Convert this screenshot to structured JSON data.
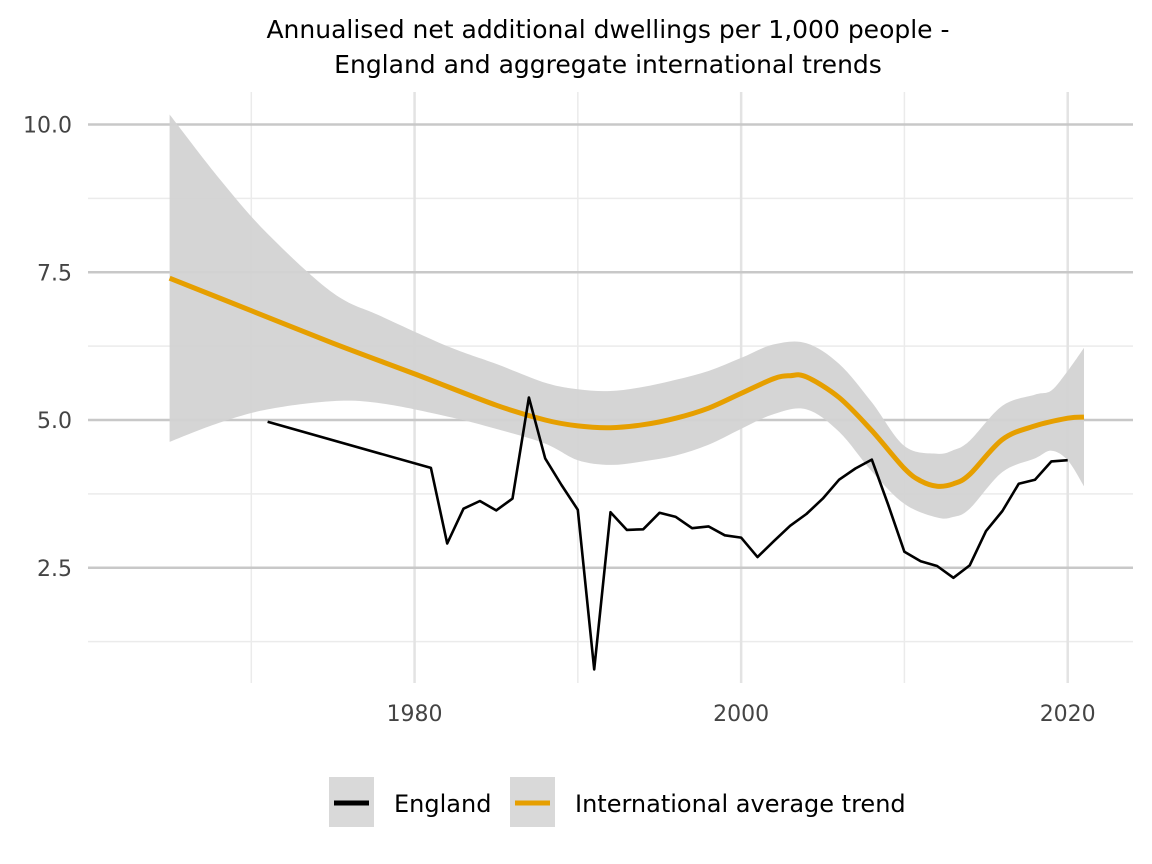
{
  "chart_data": {
    "type": "line",
    "title_lines": [
      "Annualised net additional dwellings per 1,000 people -",
      "England and aggregate international trends"
    ],
    "xlabel": "",
    "ylabel": "",
    "xlim": [
      1960,
      2024
    ],
    "ylim": [
      0.55,
      10.55
    ],
    "x_ticks": [
      1980,
      2000,
      2020
    ],
    "x_tick_labels": [
      "1980",
      "2000",
      "2020"
    ],
    "x_minor_ticks": [
      1970,
      1990,
      2010
    ],
    "y_ticks": [
      2.5,
      5.0,
      7.5,
      10.0
    ],
    "y_tick_labels": [
      "2.5",
      "5.0",
      "7.5",
      "10.0"
    ],
    "y_minor_ticks": [
      1.25,
      3.75,
      6.25,
      8.75
    ],
    "grid": true,
    "legend_position": "bottom",
    "colors": {
      "england": "#000000",
      "trend": "#E69F00",
      "band": "#d3d3d3",
      "grid_major": "#c8c8c8",
      "grid_minor": "#ebebeb",
      "legend_bg": "#d9d9d9"
    },
    "series": [
      {
        "name": "England",
        "x": [
          1971,
          1981,
          1982,
          1983,
          1984,
          1985,
          1986,
          1987,
          1988,
          1989,
          1990,
          1991,
          1992,
          1993,
          1994,
          1995,
          1996,
          1997,
          1998,
          1999,
          2000,
          2001,
          2002,
          2003,
          2004,
          2005,
          2006,
          2007,
          2008,
          2009,
          2010,
          2011,
          2012,
          2013,
          2014,
          2015,
          2016,
          2017,
          2018,
          2019,
          2020
        ],
        "values": [
          4.97,
          4.19,
          2.91,
          3.5,
          3.63,
          3.47,
          3.67,
          5.38,
          4.35,
          3.9,
          3.48,
          0.78,
          3.44,
          3.14,
          3.15,
          3.43,
          3.36,
          3.17,
          3.2,
          3.05,
          3.01,
          2.68,
          2.95,
          3.21,
          3.41,
          3.67,
          3.99,
          4.18,
          4.33,
          3.57,
          2.77,
          2.61,
          2.53,
          2.33,
          2.54,
          3.12,
          3.46,
          3.92,
          3.99,
          4.3,
          4.32
        ]
      },
      {
        "name": "International average trend",
        "x": [
          1965,
          1970,
          1975,
          1980,
          1985,
          1988,
          1990,
          1992,
          1994,
          1996,
          1998,
          2000,
          2002,
          2003,
          2004,
          2006,
          2008,
          2010,
          2011,
          2012,
          2013,
          2014,
          2016,
          2018,
          2020,
          2021
        ],
        "values": [
          7.4,
          6.85,
          6.3,
          5.78,
          5.25,
          5.0,
          4.9,
          4.87,
          4.92,
          5.03,
          5.2,
          5.45,
          5.7,
          5.75,
          5.73,
          5.38,
          4.82,
          4.18,
          3.97,
          3.88,
          3.92,
          4.08,
          4.67,
          4.9,
          5.03,
          5.05
        ]
      }
    ],
    "confidence_band": {
      "x": [
        1965,
        1968,
        1971,
        1975,
        1978,
        1982,
        1985,
        1988,
        1990,
        1992,
        1994,
        1996,
        1998,
        2000,
        2002,
        2004,
        2006,
        2008,
        2010,
        2012,
        2013,
        2014,
        2016,
        2018,
        2019,
        2020,
        2021
      ],
      "upper": [
        10.17,
        9.1,
        8.15,
        7.15,
        6.75,
        6.25,
        5.95,
        5.63,
        5.52,
        5.49,
        5.56,
        5.68,
        5.83,
        6.05,
        6.28,
        6.3,
        5.95,
        5.3,
        4.56,
        4.43,
        4.49,
        4.65,
        5.24,
        5.43,
        5.5,
        5.83,
        6.22
      ],
      "lower": [
        4.63,
        4.95,
        5.18,
        5.32,
        5.28,
        5.06,
        4.85,
        4.6,
        4.32,
        4.24,
        4.3,
        4.4,
        4.58,
        4.85,
        5.1,
        5.18,
        4.8,
        4.13,
        3.58,
        3.35,
        3.36,
        3.5,
        4.12,
        4.35,
        4.48,
        4.32,
        3.88
      ]
    },
    "legend": {
      "entries": [
        {
          "label": "England",
          "series": "england"
        },
        {
          "label": "International average trend",
          "series": "trend"
        }
      ]
    }
  }
}
